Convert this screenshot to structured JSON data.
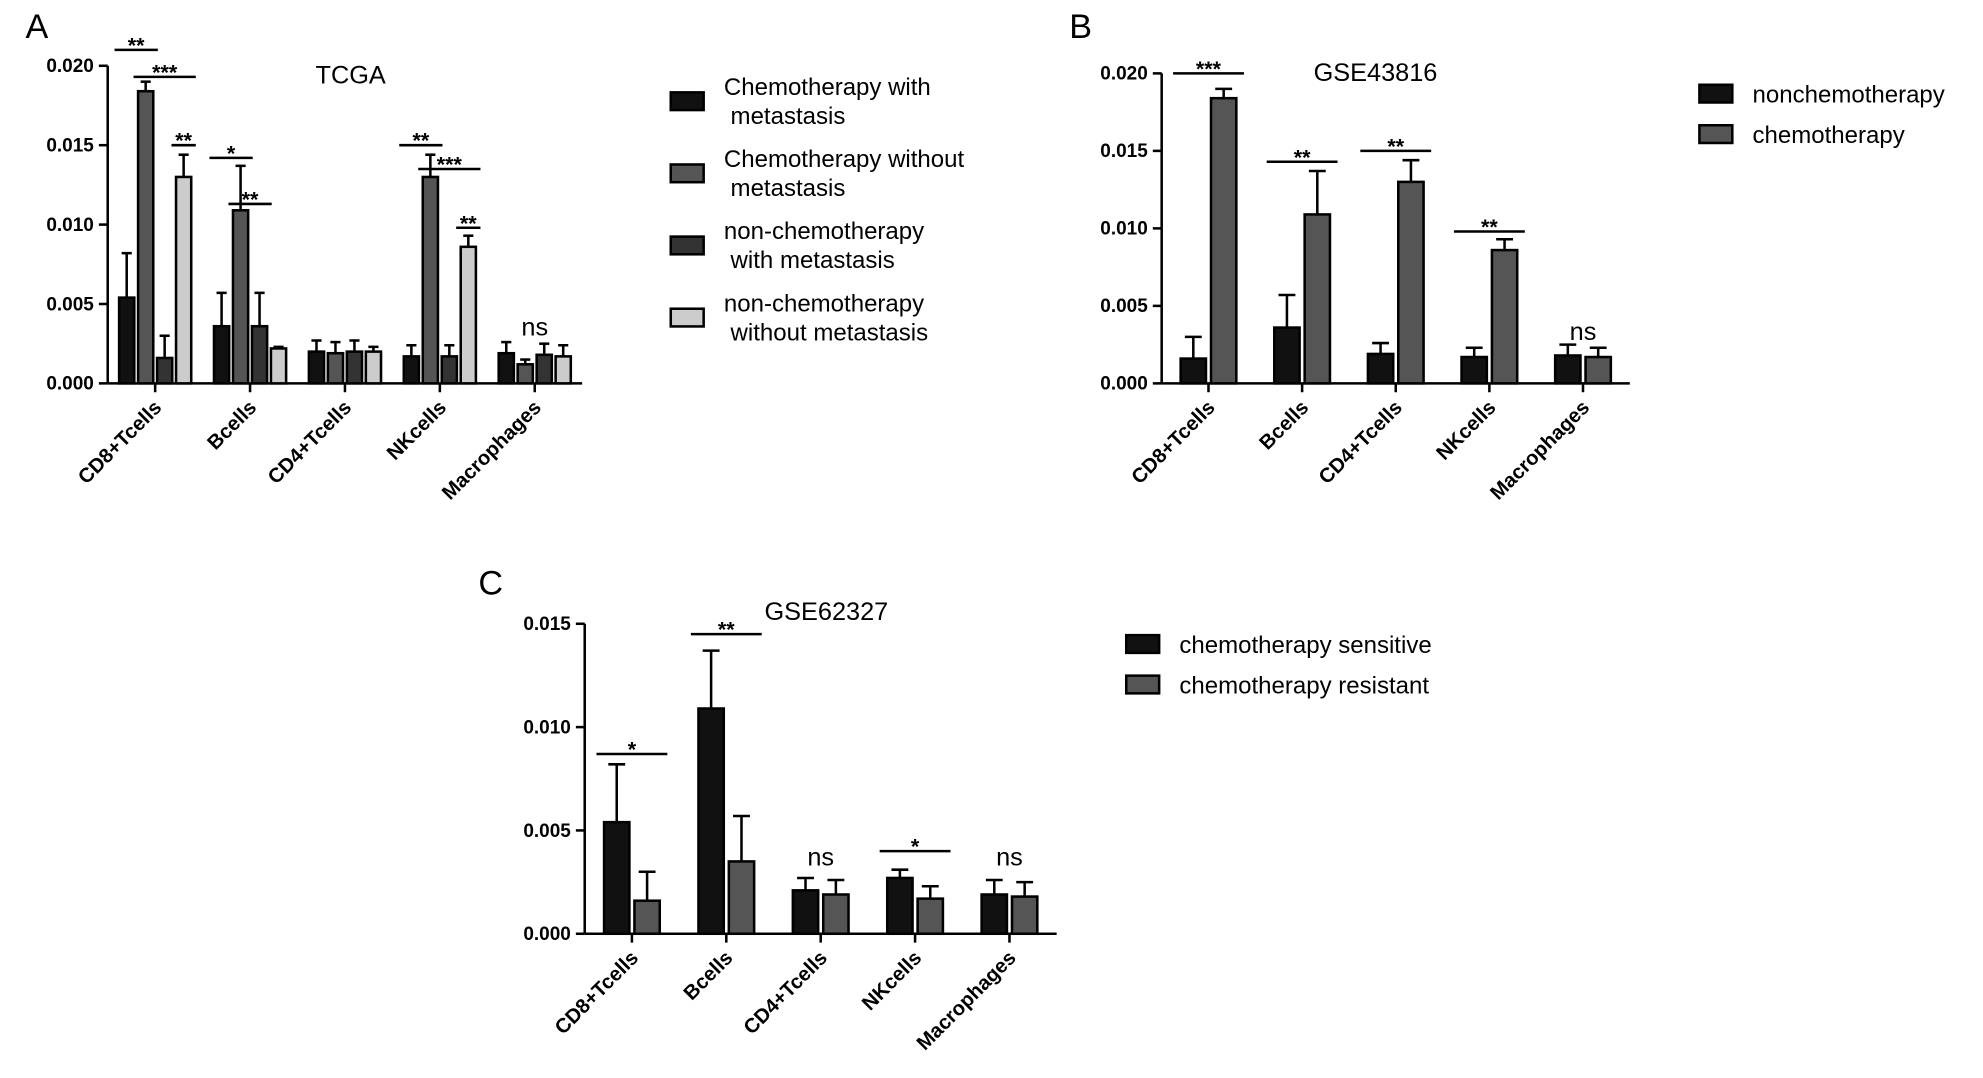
{
  "chart_data": [
    {
      "type": "bar",
      "panel": "A",
      "title": "TCGA",
      "categories": [
        "CD8+Tcells",
        "Bcells",
        "CD4+Tcells",
        "NKcells",
        "Macrophages"
      ],
      "series": [
        {
          "name": "Chemotherapy with metastasis",
          "color": "#111111",
          "values": [
            0.0054,
            0.0036,
            0.002,
            0.0017,
            0.0019
          ],
          "errors": [
            0.0028,
            0.0021,
            0.0007,
            0.0007,
            0.0007
          ]
        },
        {
          "name": "Chemotherapy without metastasis",
          "color": "#555555",
          "values": [
            0.0184,
            0.0109,
            0.0019,
            0.013,
            0.0012
          ],
          "errors": [
            0.0006,
            0.0028,
            0.0007,
            0.0014,
            0.0003
          ]
        },
        {
          "name": "non-chemotherapy with metastasis",
          "color": "#333333",
          "values": [
            0.0016,
            0.0036,
            0.002,
            0.0017,
            0.0018
          ],
          "errors": [
            0.0014,
            0.0021,
            0.0007,
            0.0007,
            0.0007
          ]
        },
        {
          "name": "non-chemotherapy without metastasis",
          "color": "#cccccc",
          "values": [
            0.013,
            0.0022,
            0.002,
            0.0086,
            0.0017
          ],
          "errors": [
            0.0014,
            0.0001,
            0.0003,
            0.0007,
            0.0007
          ]
        }
      ],
      "ylim": [
        0,
        0.02
      ],
      "yticks": [
        {
          "value": 0,
          "label": "0.000"
        },
        {
          "value": 0.005,
          "label": "0.005"
        },
        {
          "value": 0.01,
          "label": "0.010"
        },
        {
          "value": 0.015,
          "label": "0.015"
        },
        {
          "value": 0.02,
          "label": "0.020"
        }
      ],
      "annotations": [
        "**",
        "***",
        "**",
        "*",
        "**",
        "**",
        "***",
        "**",
        "ns"
      ]
    },
    {
      "type": "bar",
      "panel": "B",
      "title": "GSE43816",
      "categories": [
        "CD8+Tcells",
        "Bcells",
        "CD4+Tcells",
        "NKcells",
        "Macrophages"
      ],
      "series": [
        {
          "name": "nonchemotherapy",
          "color": "#111111",
          "values": [
            0.0016,
            0.0036,
            0.0019,
            0.0017,
            0.0018
          ],
          "errors": [
            0.0014,
            0.0021,
            0.0007,
            0.0006,
            0.0007
          ]
        },
        {
          "name": "chemotherapy",
          "color": "#555555",
          "values": [
            0.0184,
            0.0109,
            0.013,
            0.0086,
            0.0017
          ],
          "errors": [
            0.0006,
            0.0028,
            0.0014,
            0.0007,
            0.0006
          ]
        }
      ],
      "ylim": [
        0,
        0.02
      ],
      "yticks": [
        {
          "value": 0,
          "label": "0.000"
        },
        {
          "value": 0.005,
          "label": "0.005"
        },
        {
          "value": 0.01,
          "label": "0.010"
        },
        {
          "value": 0.015,
          "label": "0.015"
        },
        {
          "value": 0.02,
          "label": "0.020"
        }
      ],
      "annotations": [
        "***",
        "**",
        "**",
        "**",
        "ns"
      ]
    },
    {
      "type": "bar",
      "panel": "C",
      "title": "GSE62327",
      "categories": [
        "CD8+Tcells",
        "Bcells",
        "CD4+Tcells",
        "NKcells",
        "Macrophages"
      ],
      "series": [
        {
          "name": "chemotherapy sensitive",
          "color": "#111111",
          "values": [
            0.0054,
            0.0109,
            0.0021,
            0.0027,
            0.0019
          ],
          "errors": [
            0.0028,
            0.0028,
            0.0006,
            0.0004,
            0.0007
          ]
        },
        {
          "name": "chemotherapy resistant",
          "color": "#555555",
          "values": [
            0.0016,
            0.0035,
            0.0019,
            0.0017,
            0.0018
          ],
          "errors": [
            0.0014,
            0.0022,
            0.0007,
            0.0006,
            0.0007
          ]
        }
      ],
      "ylim": [
        0,
        0.015
      ],
      "yticks": [
        {
          "value": 0,
          "label": "0.000"
        },
        {
          "value": 0.005,
          "label": "0.005"
        },
        {
          "value": 0.01,
          "label": "0.010"
        },
        {
          "value": 0.015,
          "label": "0.015"
        }
      ],
      "annotations": [
        "*",
        "**",
        "ns",
        "*",
        "ns"
      ]
    }
  ]
}
